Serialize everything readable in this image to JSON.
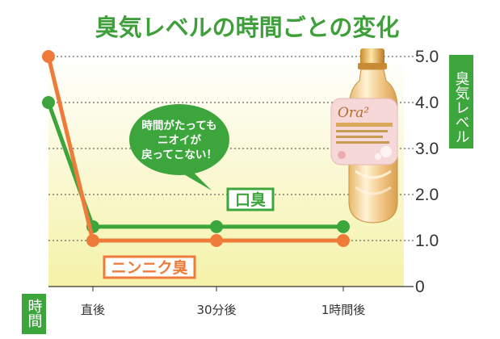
{
  "chart_data": {
    "type": "line",
    "title": "臭気レベルの時間ごとの変化",
    "ylabel": "臭気レベル",
    "xlabel": "時間",
    "ylim": [
      0,
      5
    ],
    "yticks": [
      "5.0",
      "4.0",
      "3.0",
      "2.0",
      "1.0",
      "0"
    ],
    "grid": true,
    "categories": [
      "",
      "直後",
      "30分後",
      "1時間後"
    ],
    "series": [
      {
        "name": "口臭",
        "values": [
          4.0,
          1.3,
          1.3,
          1.3
        ],
        "color": "#3ca63c"
      },
      {
        "name": "ニンニク臭",
        "values": [
          5.0,
          1.0,
          1.0,
          1.0
        ],
        "color": "#ef7b3a"
      }
    ],
    "annotations": [
      {
        "text_lines": [
          "時間がたっても",
          "ニオイが",
          "戻ってこない！"
        ],
        "color": "#3ca63c"
      }
    ]
  },
  "product": {
    "icon": "mouthwash-bottle-icon"
  },
  "colors": {
    "background_top": "#ffffff",
    "background_bottom": "#f5f2a8",
    "grid": "#333333"
  }
}
